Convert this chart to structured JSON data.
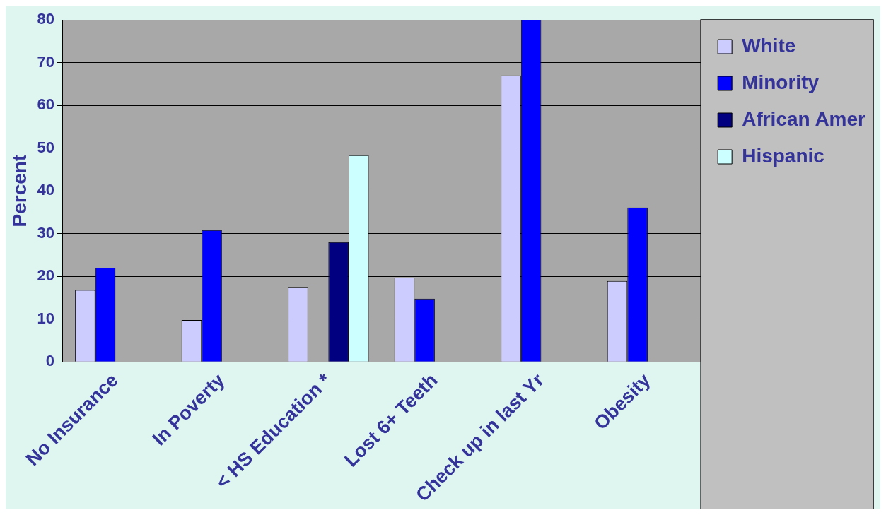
{
  "chart_data": {
    "type": "bar",
    "ylabel": "Percent",
    "categories": [
      "No Insurance",
      "In Poverty",
      "< HS Education *",
      "Lost 6+ Teeth",
      "Check up in last Yr",
      "Obesity"
    ],
    "series": [
      {
        "name": "White",
        "color": "#ccccff",
        "values": [
          16.8,
          9.8,
          17.5,
          19.7,
          67,
          18.9
        ]
      },
      {
        "name": "Minority",
        "color": "#0000ff",
        "values": [
          22,
          30.8,
          null,
          14.8,
          80,
          36.1
        ]
      },
      {
        "name": "African Amer",
        "color": "#000080",
        "values": [
          null,
          null,
          28,
          null,
          null,
          null
        ]
      },
      {
        "name": "Hispanic",
        "color": "#ccffff",
        "values": [
          null,
          null,
          48.3,
          null,
          null,
          null
        ]
      }
    ],
    "ylim": [
      0,
      80
    ],
    "yticks": [
      0,
      10,
      20,
      30,
      40,
      50,
      60,
      70,
      80
    ],
    "grid": "y",
    "legend": "right"
  }
}
